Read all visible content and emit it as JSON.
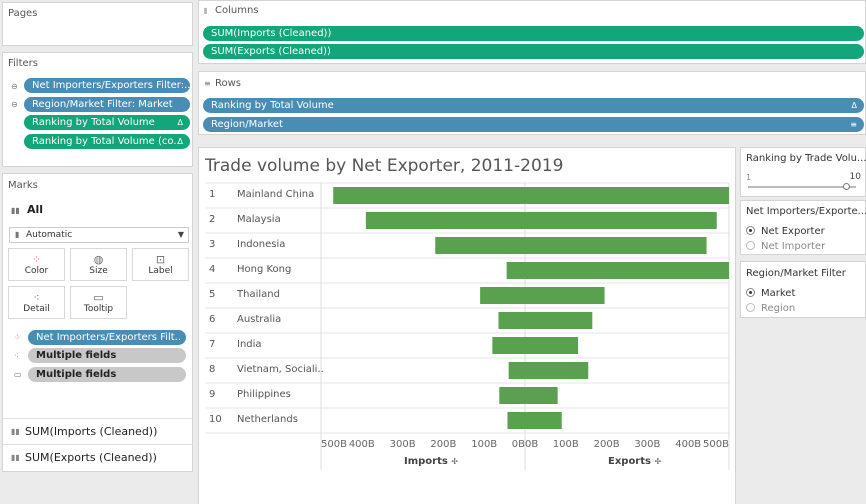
{
  "pages": {
    "title": "Pages"
  },
  "filters": {
    "title": "Filters",
    "items": [
      {
        "label": "Net Importers/Exporters Filter:..",
        "color": "blue",
        "lock": true
      },
      {
        "label": "Region/Market Filter: Market",
        "color": "blue",
        "lock": true
      },
      {
        "label": "Ranking by Total Volume",
        "color": "green",
        "delta": "Δ"
      },
      {
        "label": "Ranking by Total Volume (co..",
        "color": "green",
        "delta": "Δ"
      }
    ]
  },
  "marks": {
    "title": "Marks",
    "all_label": "All",
    "type_value": "Automatic",
    "buttons": [
      "Color",
      "Size",
      "Label",
      "Detail",
      "Tooltip"
    ],
    "cards": [
      {
        "label": "Net Importers/Exporters Filt..",
        "color": "blue"
      },
      {
        "label": "Multiple fields",
        "color": "grey"
      },
      {
        "label": "Multiple fields",
        "color": "grey"
      }
    ],
    "measures": [
      "SUM(Imports (Cleaned))",
      "SUM(Exports (Cleaned))"
    ]
  },
  "columns": {
    "title": "Columns",
    "pills": [
      "SUM(Imports (Cleaned))",
      "SUM(Exports (Cleaned))"
    ]
  },
  "rows": {
    "title": "Rows",
    "pills": [
      {
        "label": "Ranking by Total Volume",
        "icon": "Δ"
      },
      {
        "label": "Region/Market",
        "icon": "≡"
      }
    ]
  },
  "legend_controls": {
    "ranking": {
      "title": "Ranking by Trade Volu...",
      "min": "1",
      "max": "10",
      "value_fraction": 0.92
    },
    "net_filter": {
      "title": "Net Importers/Exporte...",
      "options": [
        "Net Exporter",
        "Net Importer"
      ],
      "selected": 0
    },
    "region_filter": {
      "title": "Region/Market Filter",
      "options": [
        "Market",
        "Region"
      ],
      "selected": 0
    }
  },
  "chart_data": {
    "type": "bar",
    "title": "Trade volume by Net Exporter, 2011-2019",
    "bar_color": "#59a14f",
    "ranks": [
      "1",
      "2",
      "3",
      "4",
      "5",
      "6",
      "7",
      "8",
      "9",
      "10"
    ],
    "categories": [
      "Mainland China",
      "Malaysia",
      "Indonesia",
      "Hong Kong",
      "Thailand",
      "Australia",
      "India",
      "Vietnam, Sociali..",
      "Philippines",
      "Netherlands"
    ],
    "series": [
      {
        "name": "Imports",
        "values": [
          470,
          390,
          220,
          45,
          110,
          65,
          80,
          40,
          63,
          43
        ]
      },
      {
        "name": "Exports",
        "values": [
          520,
          470,
          445,
          520,
          195,
          165,
          130,
          155,
          80,
          90
        ]
      }
    ],
    "imports_axis": {
      "label": "Imports",
      "range": [
        500,
        0
      ],
      "ticks": [
        "500B",
        "400B",
        "300B",
        "200B",
        "100B",
        "0B"
      ]
    },
    "exports_axis": {
      "label": "Exports",
      "range": [
        0,
        500
      ],
      "ticks": [
        "0B",
        "100B",
        "200B",
        "300B",
        "400B",
        "500B"
      ]
    }
  }
}
